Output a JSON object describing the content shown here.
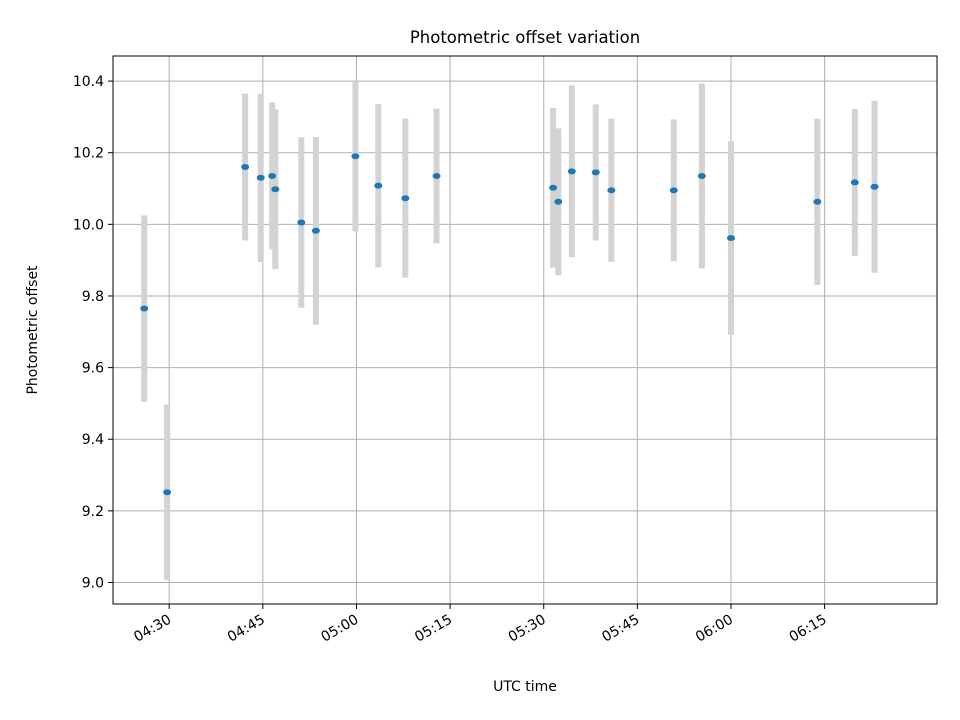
{
  "chart_data": {
    "type": "scatter",
    "title": "Photometric offset variation",
    "xlabel": "UTC time",
    "ylabel": "Photometric offset",
    "xlim": [
      "04:21",
      "06:33"
    ],
    "ylim": [
      8.94,
      10.47
    ],
    "x_ticks": [
      "04:30",
      "04:45",
      "05:00",
      "05:15",
      "05:30",
      "05:45",
      "06:00",
      "06:15"
    ],
    "y_ticks": [
      "9.0",
      "9.2",
      "9.4",
      "9.6",
      "9.8",
      "10.0",
      "10.2",
      "10.4"
    ],
    "grid": true,
    "colors": {
      "point": "#1f77b4",
      "errorbar": "#d3d3d3",
      "grid": "#b0b0b0"
    },
    "series": [
      {
        "points": [
          {
            "x": "04:26:00",
            "y": 9.765,
            "yerr": 0.26
          },
          {
            "x": "04:29:40",
            "y": 9.252,
            "yerr": 0.245
          },
          {
            "x": "04:42:10",
            "y": 10.16,
            "yerr": 0.205
          },
          {
            "x": "04:44:40",
            "y": 10.13,
            "yerr": 0.235
          },
          {
            "x": "04:46:30",
            "y": 10.135,
            "yerr": 0.205
          },
          {
            "x": "04:47:00",
            "y": 10.098,
            "yerr": 0.223
          },
          {
            "x": "04:51:10",
            "y": 10.005,
            "yerr": 0.238
          },
          {
            "x": "04:53:30",
            "y": 9.982,
            "yerr": 0.262
          },
          {
            "x": "04:59:50",
            "y": 10.19,
            "yerr": 0.21
          },
          {
            "x": "05:03:30",
            "y": 10.108,
            "yerr": 0.228
          },
          {
            "x": "05:07:50",
            "y": 10.073,
            "yerr": 0.222
          },
          {
            "x": "05:12:50",
            "y": 10.135,
            "yerr": 0.188
          },
          {
            "x": "05:31:30",
            "y": 10.102,
            "yerr": 0.223
          },
          {
            "x": "05:32:20",
            "y": 10.063,
            "yerr": 0.205
          },
          {
            "x": "05:34:30",
            "y": 10.148,
            "yerr": 0.24
          },
          {
            "x": "05:38:20",
            "y": 10.145,
            "yerr": 0.19
          },
          {
            "x": "05:40:50",
            "y": 10.095,
            "yerr": 0.2
          },
          {
            "x": "05:50:50",
            "y": 10.095,
            "yerr": 0.198
          },
          {
            "x": "05:55:20",
            "y": 10.135,
            "yerr": 0.258
          },
          {
            "x": "06:00:00",
            "y": 9.962,
            "yerr": 0.27
          },
          {
            "x": "06:13:50",
            "y": 10.063,
            "yerr": 0.232
          },
          {
            "x": "06:19:50",
            "y": 10.117,
            "yerr": 0.205
          },
          {
            "x": "06:23:00",
            "y": 10.105,
            "yerr": 0.24
          }
        ]
      }
    ]
  }
}
